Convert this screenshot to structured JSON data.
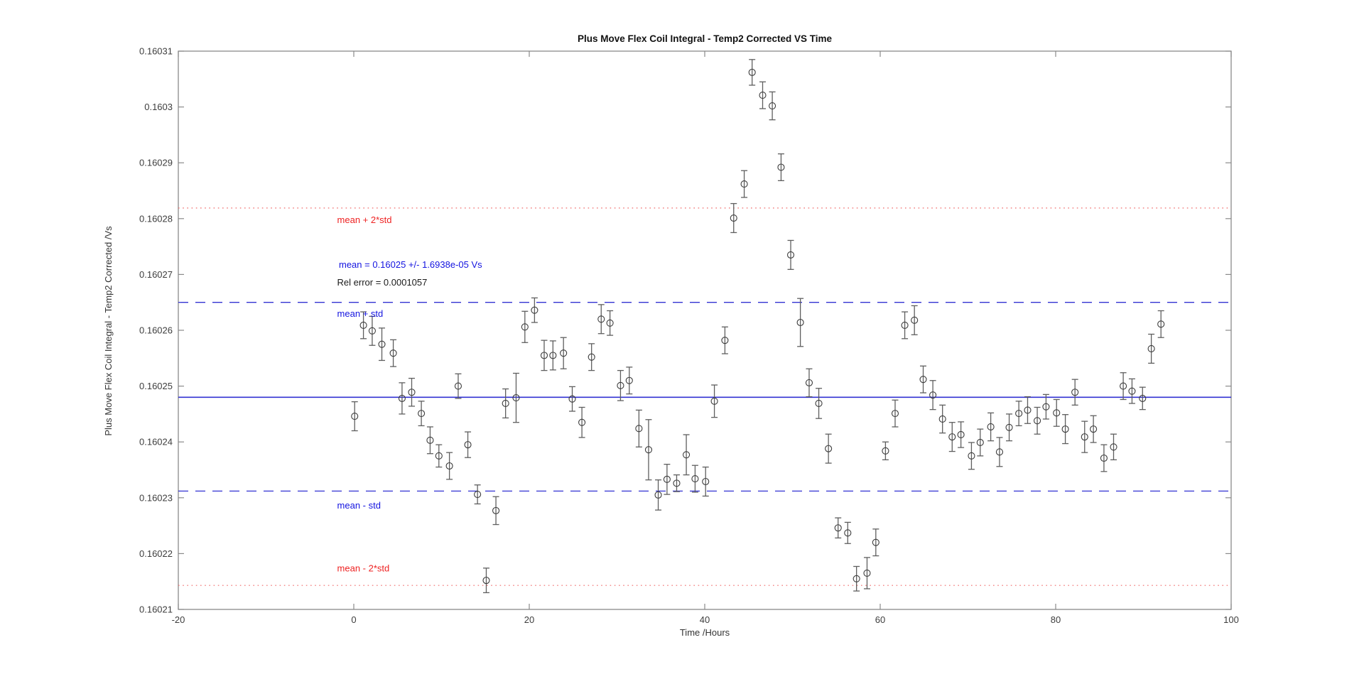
{
  "figure": {
    "background": "#ffffff"
  },
  "palette": {
    "blue_line": "#3232d2",
    "blue_text": "#1414e0",
    "red_line": "#f06a6a",
    "red_text": "#ee2222",
    "axis": "#8a8a8a",
    "tick_label": "#3d3d3d",
    "marker": "#3c3c3c",
    "errorbar": "#5f5f5f",
    "black_text": "#1a1a1a"
  },
  "chart_data": {
    "type": "scatter",
    "title": "Plus Move Flex Coil Integral - Temp2 Corrected VS Time",
    "xlabel": "Time /Hours",
    "ylabel": "Plus Move Flex Coil Integral - Temp2 Corrected /Vs",
    "xlim": [
      -20,
      100
    ],
    "ylim": [
      0.16021,
      0.16031
    ],
    "grid": false,
    "xticks": [
      -20,
      0,
      20,
      40,
      60,
      80,
      100
    ],
    "xtick_labels": [
      "-20",
      "0",
      "20",
      "40",
      "60",
      "80",
      "100"
    ],
    "ytick_values": [
      0.16021,
      0.16022,
      0.16023,
      0.16024,
      0.16025,
      0.16026,
      0.16027,
      0.16028,
      0.16029,
      0.1603,
      0.16031
    ],
    "ytick_labels": [
      "0.16021",
      "0.16022",
      "0.16023",
      "0.16024",
      "0.16025",
      "0.16026",
      "0.16027",
      "0.16028",
      "0.16029",
      "0.1603",
      "0.16031"
    ],
    "stats": {
      "mean": 0.16025,
      "std": 1.6938e-05,
      "mean_text": "mean = 0.16025 +/- 1.6938e-05 Vs",
      "rel_error_text": "Rel error = 0.0001057"
    },
    "lines": [
      {
        "name": "mean",
        "value": 0.160248,
        "color": "blue",
        "style": "solid"
      },
      {
        "name": "mean-plus-std",
        "value": 0.160265,
        "color": "blue",
        "style": "dashed"
      },
      {
        "name": "mean-minus-std",
        "value": 0.1602312,
        "color": "blue",
        "style": "dashed"
      },
      {
        "name": "mean-plus-2std",
        "value": 0.1602819,
        "color": "red",
        "style": "dotted"
      },
      {
        "name": "mean-minus-2std",
        "value": 0.1602143,
        "color": "red",
        "style": "dotted"
      }
    ],
    "annotations": [
      {
        "text": "mean + 2*std",
        "x": -1.9,
        "y": 0.1602797,
        "color": "red"
      },
      {
        "text": "mean = 0.16025 +/- 1.6938e-05 Vs",
        "x": -1.7,
        "y": 0.1602717,
        "color": "blue"
      },
      {
        "text": "Rel error = 0.0001057",
        "x": -1.9,
        "y": 0.1602685,
        "color": "black"
      },
      {
        "text": "mean + std",
        "x": -1.9,
        "y": 0.1602629,
        "color": "blue"
      },
      {
        "text": "mean - std",
        "x": -1.9,
        "y": 0.1602286,
        "color": "blue"
      },
      {
        "text": "mean - 2*std",
        "x": -1.9,
        "y": 0.1602173,
        "color": "red"
      }
    ],
    "err_units": "1e-6 Vs",
    "points": [
      [
        0.1,
        0.1602446,
        2.6
      ],
      [
        1.1,
        0.1602609,
        2.4
      ],
      [
        2.1,
        0.1602599,
        2.6
      ],
      [
        3.2,
        0.1602575,
        2.9
      ],
      [
        4.5,
        0.1602559,
        2.4
      ],
      [
        5.5,
        0.1602478,
        2.8
      ],
      [
        6.6,
        0.1602489,
        2.5
      ],
      [
        7.7,
        0.1602451,
        2.2
      ],
      [
        8.7,
        0.1602403,
        2.4
      ],
      [
        9.7,
        0.1602375,
        2.0
      ],
      [
        10.9,
        0.1602357,
        2.4
      ],
      [
        11.9,
        0.16025,
        2.2
      ],
      [
        13.0,
        0.1602395,
        2.3
      ],
      [
        14.1,
        0.1602306,
        1.7
      ],
      [
        15.1,
        0.1602152,
        2.2
      ],
      [
        16.2,
        0.1602277,
        2.5
      ],
      [
        17.3,
        0.1602469,
        2.6
      ],
      [
        18.5,
        0.1602479,
        4.4
      ],
      [
        19.5,
        0.1602606,
        2.8
      ],
      [
        20.6,
        0.1602636,
        2.2
      ],
      [
        21.7,
        0.1602555,
        2.7
      ],
      [
        22.7,
        0.1602555,
        2.6
      ],
      [
        23.9,
        0.1602559,
        2.8
      ],
      [
        24.9,
        0.1602477,
        2.2
      ],
      [
        26.0,
        0.1602435,
        2.7
      ],
      [
        27.1,
        0.1602552,
        2.4
      ],
      [
        28.2,
        0.160262,
        2.6
      ],
      [
        29.2,
        0.1602613,
        2.2
      ],
      [
        30.4,
        0.1602501,
        2.7
      ],
      [
        31.4,
        0.160251,
        2.4
      ],
      [
        32.5,
        0.1602424,
        3.3
      ],
      [
        33.6,
        0.1602386,
        5.4
      ],
      [
        34.7,
        0.1602305,
        2.7
      ],
      [
        35.7,
        0.1602333,
        2.7
      ],
      [
        36.8,
        0.1602326,
        1.5
      ],
      [
        37.9,
        0.1602377,
        3.6
      ],
      [
        38.9,
        0.1602334,
        2.4
      ],
      [
        40.1,
        0.1602329,
        2.6
      ],
      [
        41.1,
        0.1602473,
        2.9
      ],
      [
        42.3,
        0.1602582,
        2.4
      ],
      [
        43.3,
        0.1602801,
        2.6
      ],
      [
        44.5,
        0.1602862,
        2.4
      ],
      [
        45.4,
        0.1603062,
        2.3
      ],
      [
        46.6,
        0.1603021,
        2.4
      ],
      [
        47.7,
        0.1603002,
        2.5
      ],
      [
        48.7,
        0.1602892,
        2.4
      ],
      [
        49.8,
        0.1602735,
        2.6
      ],
      [
        50.9,
        0.1602614,
        4.3
      ],
      [
        51.9,
        0.1602506,
        2.5
      ],
      [
        53.0,
        0.1602469,
        2.7
      ],
      [
        54.1,
        0.1602388,
        2.6
      ],
      [
        55.2,
        0.1602246,
        1.8
      ],
      [
        56.3,
        0.1602237,
        1.9
      ],
      [
        57.3,
        0.1602155,
        2.2
      ],
      [
        58.5,
        0.1602165,
        2.8
      ],
      [
        59.5,
        0.160222,
        2.4
      ],
      [
        60.6,
        0.1602384,
        1.6
      ],
      [
        61.7,
        0.1602451,
        2.4
      ],
      [
        62.8,
        0.1602609,
        2.4
      ],
      [
        63.9,
        0.1602618,
        2.6
      ],
      [
        64.9,
        0.1602512,
        2.4
      ],
      [
        66.0,
        0.1602484,
        2.6
      ],
      [
        67.1,
        0.1602441,
        2.5
      ],
      [
        68.2,
        0.1602409,
        2.6
      ],
      [
        69.2,
        0.1602413,
        2.3
      ],
      [
        70.4,
        0.1602375,
        2.4
      ],
      [
        71.4,
        0.1602399,
        2.4
      ],
      [
        72.6,
        0.1602427,
        2.5
      ],
      [
        73.6,
        0.1602382,
        2.6
      ],
      [
        74.7,
        0.1602426,
        2.4
      ],
      [
        75.8,
        0.1602451,
        2.2
      ],
      [
        76.8,
        0.1602457,
        2.4
      ],
      [
        77.9,
        0.1602438,
        2.4
      ],
      [
        78.9,
        0.1602463,
        2.2
      ],
      [
        80.1,
        0.1602452,
        2.4
      ],
      [
        81.1,
        0.1602423,
        2.6
      ],
      [
        82.2,
        0.1602489,
        2.3
      ],
      [
        83.3,
        0.1602409,
        2.8
      ],
      [
        84.3,
        0.1602423,
        2.4
      ],
      [
        85.5,
        0.1602371,
        2.4
      ],
      [
        86.6,
        0.1602391,
        2.3
      ],
      [
        87.7,
        0.16025,
        2.4
      ],
      [
        88.7,
        0.1602491,
        2.2
      ],
      [
        89.9,
        0.1602478,
        2.0
      ],
      [
        90.9,
        0.1602567,
        2.6
      ],
      [
        92.0,
        0.1602611,
        2.4
      ]
    ]
  }
}
